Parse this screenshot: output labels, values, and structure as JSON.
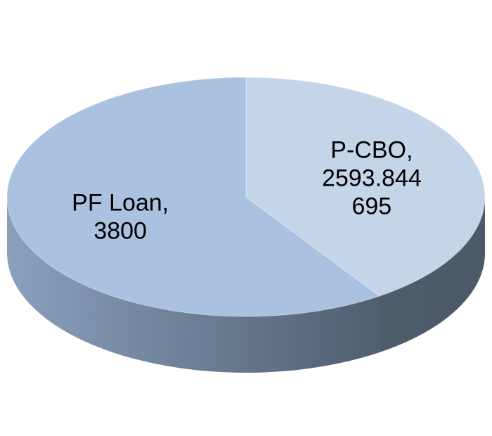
{
  "chart_data": {
    "type": "pie",
    "style": "3d",
    "title": "",
    "legend": "none",
    "slices": [
      {
        "category": "P-CBO",
        "value": 2593.844695,
        "label_lines": [
          "P-CBO,",
          "2593.844",
          "695"
        ],
        "color": "#c5d5e9"
      },
      {
        "category": "PF Loan",
        "value": 3800,
        "label_lines": [
          "PF Loan,",
          "3800"
        ],
        "color": "#aac1e0"
      }
    ],
    "side_color_light": "#8aa0bd",
    "side_color_dark": "#3f4b5a"
  }
}
